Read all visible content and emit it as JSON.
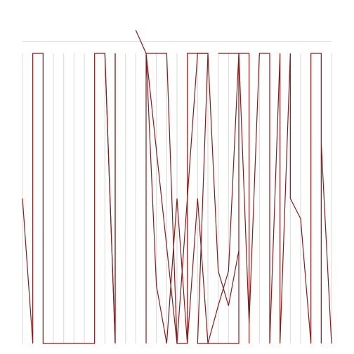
{
  "chart_data": {
    "type": "line",
    "title": "",
    "xlabel": "",
    "ylabel": "",
    "grid": true,
    "legend": "none",
    "ylim": [
      0,
      1.05
    ],
    "colors": {
      "line": "#8b1a1a",
      "grid": "#d9d9d9",
      "background": "#ffffff"
    },
    "polylines": [
      [
        [
          0,
          0.5
        ],
        [
          1,
          0
        ],
        [
          1,
          1
        ],
        [
          2,
          1
        ],
        [
          2,
          0
        ],
        [
          7,
          0
        ],
        [
          7,
          1
        ],
        [
          8,
          1
        ],
        [
          9,
          0
        ],
        [
          9,
          1
        ]
      ],
      [
        [
          8,
          1
        ],
        [
          9,
          0
        ],
        [
          9,
          1
        ]
      ],
      [
        [
          11,
          1.08
        ],
        [
          12,
          1
        ],
        [
          14,
          1
        ],
        [
          15,
          0
        ],
        [
          16,
          0
        ],
        [
          16,
          1
        ],
        [
          18,
          1
        ],
        [
          17,
          0
        ],
        [
          18,
          0
        ],
        [
          19,
          0
        ],
        [
          20,
          0
        ],
        [
          21,
          0
        ],
        [
          21,
          1
        ],
        [
          19,
          1
        ]
      ],
      [
        [
          12,
          0
        ],
        [
          12,
          1
        ],
        [
          13,
          0.2
        ],
        [
          14,
          0
        ],
        [
          15,
          0.5
        ],
        [
          16,
          0
        ],
        [
          17,
          0.5
        ],
        [
          18,
          0
        ],
        [
          19,
          0.13
        ],
        [
          20,
          0.25
        ],
        [
          21,
          1
        ],
        [
          22,
          1
        ],
        [
          22,
          0
        ]
      ],
      [
        [
          21,
          1
        ],
        [
          22,
          0.07
        ],
        [
          23,
          1
        ],
        [
          24,
          1
        ],
        [
          24,
          0
        ]
      ],
      [
        [
          24,
          0
        ],
        [
          25,
          1
        ],
        [
          25,
          0
        ],
        [
          26,
          1
        ],
        [
          26,
          0.5
        ],
        [
          27,
          0.43
        ],
        [
          28,
          0
        ],
        [
          28,
          1
        ],
        [
          29,
          1
        ],
        [
          29,
          0
        ],
        [
          29,
          0.69
        ],
        [
          30,
          0
        ]
      ],
      [
        [
          12,
          1
        ],
        [
          15,
          0
        ],
        [
          16,
          0.5
        ],
        [
          17,
          1
        ],
        [
          18,
          1
        ],
        [
          19,
          0.25
        ],
        [
          20,
          0.13
        ],
        [
          21,
          0.32
        ]
      ]
    ],
    "grid_x": [
      0,
      1,
      2,
      3,
      4,
      5,
      6,
      7,
      8,
      9,
      10,
      11,
      12,
      13,
      14,
      15,
      16,
      17,
      18,
      19,
      20,
      21,
      22,
      23,
      24,
      25,
      26,
      27,
      28,
      29,
      30
    ],
    "reference_y": 1.04
  }
}
